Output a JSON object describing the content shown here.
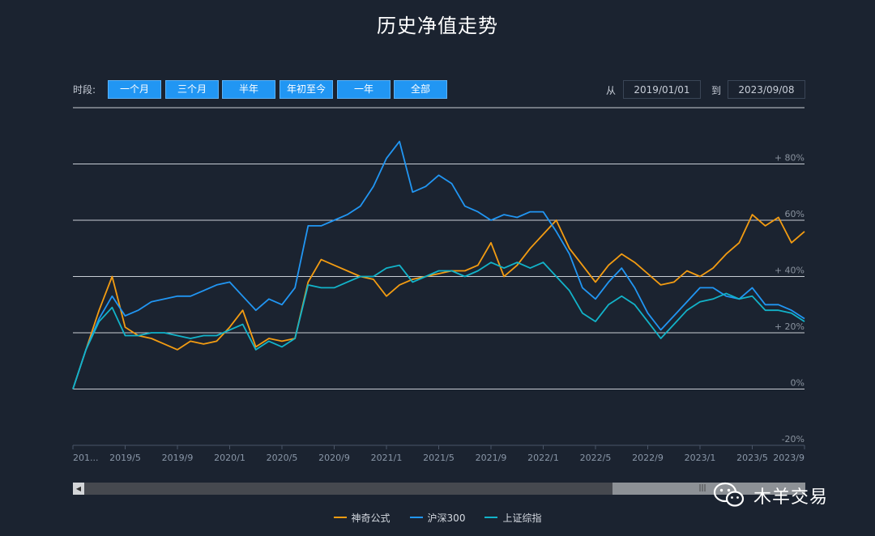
{
  "title": "历史净值走势",
  "toolbar": {
    "period_label": "时段:",
    "ranges": [
      "一个月",
      "三个月",
      "半年",
      "年初至今",
      "一年",
      "全部"
    ],
    "from_label": "从",
    "from_value": "2019/01/01",
    "to_label": "到",
    "to_value": "2023/09/08"
  },
  "watermark": {
    "text": "木羊交易"
  },
  "colors": {
    "series1": "#f39c12",
    "series2": "#2196f3",
    "series3": "#12b3c9",
    "background": "#1b2330",
    "grid": "#c8cdd4"
  },
  "chart_data": {
    "type": "line",
    "title": "历史净值走势",
    "x_start": "2019/01/01",
    "x_end": "2023/09/08",
    "x_ticks": [
      "201...",
      "2019/5",
      "2019/9",
      "2020/1",
      "2020/5",
      "2020/9",
      "2021/1",
      "2021/5",
      "2021/9",
      "2022/1",
      "2022/5",
      "2022/9",
      "2023/1",
      "2023/5",
      "2023/9"
    ],
    "y_ticks": [
      "-20%",
      "0%",
      "+ 20%",
      "+ 40%",
      "60%",
      "+ 80%"
    ],
    "ylim": [
      -20,
      100
    ],
    "grid": true,
    "legend_position": "bottom",
    "x": [
      "2019/01",
      "2019/02",
      "2019/03",
      "2019/04",
      "2019/05",
      "2019/06",
      "2019/07",
      "2019/08",
      "2019/09",
      "2019/10",
      "2019/11",
      "2019/12",
      "2020/01",
      "2020/02",
      "2020/03",
      "2020/04",
      "2020/05",
      "2020/06",
      "2020/07",
      "2020/08",
      "2020/09",
      "2020/10",
      "2020/11",
      "2020/12",
      "2021/01",
      "2021/02",
      "2021/03",
      "2021/04",
      "2021/05",
      "2021/06",
      "2021/07",
      "2021/08",
      "2021/09",
      "2021/10",
      "2021/11",
      "2021/12",
      "2022/01",
      "2022/02",
      "2022/03",
      "2022/04",
      "2022/05",
      "2022/06",
      "2022/07",
      "2022/08",
      "2022/09",
      "2022/10",
      "2022/11",
      "2022/12",
      "2023/01",
      "2023/02",
      "2023/03",
      "2023/04",
      "2023/05",
      "2023/06",
      "2023/07",
      "2023/08",
      "2023/09"
    ],
    "series": [
      {
        "name": "神奇公式",
        "values": [
          0,
          14,
          28,
          40,
          22,
          19,
          18,
          16,
          14,
          17,
          16,
          17,
          22,
          28,
          15,
          18,
          17,
          18,
          38,
          46,
          44,
          42,
          40,
          39,
          33,
          37,
          39,
          40,
          41,
          42,
          42,
          44,
          52,
          40,
          44,
          50,
          55,
          60,
          50,
          44,
          38,
          44,
          48,
          45,
          41,
          37,
          38,
          42,
          40,
          43,
          48,
          52,
          62,
          58,
          61,
          52,
          56
        ]
      },
      {
        "name": "沪深300",
        "values": [
          0,
          14,
          25,
          33,
          26,
          28,
          31,
          32,
          33,
          33,
          35,
          37,
          38,
          33,
          28,
          32,
          30,
          36,
          58,
          58,
          60,
          62,
          65,
          72,
          82,
          88,
          70,
          72,
          76,
          73,
          65,
          63,
          60,
          62,
          61,
          63,
          63,
          56,
          48,
          36,
          32,
          38,
          43,
          36,
          27,
          21,
          26,
          31,
          36,
          36,
          33,
          32,
          36,
          30,
          30,
          28,
          25
        ]
      },
      {
        "name": "上证综指",
        "values": [
          0,
          14,
          24,
          29,
          19,
          19,
          20,
          20,
          19,
          18,
          19,
          19,
          21,
          23,
          14,
          17,
          15,
          18,
          37,
          36,
          36,
          38,
          40,
          40,
          43,
          44,
          38,
          40,
          42,
          42,
          40,
          42,
          45,
          43,
          45,
          43,
          45,
          40,
          35,
          27,
          24,
          30,
          33,
          30,
          24,
          18,
          23,
          28,
          31,
          32,
          34,
          32,
          33,
          28,
          28,
          27,
          24
        ]
      }
    ]
  }
}
